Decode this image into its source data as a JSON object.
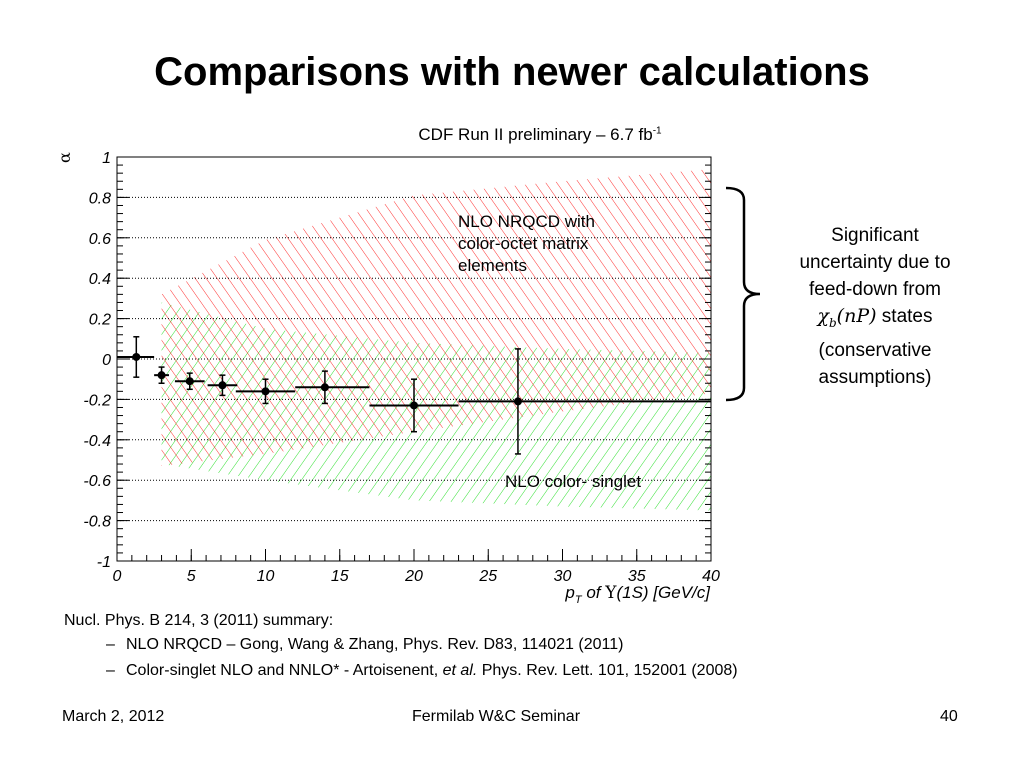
{
  "slide": {
    "title": "Comparisons with newer calculations",
    "chart_title": "CDF Run II preliminary – 6.7 fb",
    "chart_title_sup": "-1",
    "note": {
      "line1": "Significant",
      "line2": "uncertainty due to",
      "line3": "feed-down from",
      "chi": "χ",
      "chi_sub": "b",
      "np": "(nP)",
      "states": " states",
      "line5": "(conservative",
      "line6": "assumptions)"
    },
    "refs": {
      "heading": "Nucl. Phys. B 214, 3 (2011) summary:",
      "item1": "NLO NRQCD – Gong, Wang & Zhang, Phys. Rev. D83, 114021 (2011)",
      "item2_a": "Color-singlet NLO and NNLO* - Artoisenent, ",
      "item2_em": "et al.",
      "item2_b": " Phys. Rev. Lett. 101, 152001 (2008)"
    },
    "footer": {
      "date": "March 2, 2012",
      "event": "Fermilab W&C Seminar",
      "page": "40"
    }
  },
  "chart_data": {
    "type": "scatter",
    "xlabel": "p_T of Υ(1S) [GeV/c]",
    "ylabel": "α",
    "xlim": [
      0,
      40
    ],
    "ylim": [
      -1,
      1
    ],
    "x_ticks": [
      0,
      5,
      10,
      15,
      20,
      25,
      30,
      35,
      40
    ],
    "y_ticks": [
      1,
      0.8,
      0.6,
      0.4,
      0.2,
      0,
      -0.2,
      -0.4,
      -0.6,
      -0.8,
      -1
    ],
    "y_tick_labels": [
      "1",
      "0.8",
      "0.6",
      "0.4",
      "0.2",
      "0",
      "-0.2",
      "-0.4",
      "-0.6",
      "-0.8",
      "-1"
    ],
    "grid_y": true,
    "series": [
      {
        "type": "points",
        "points": [
          {
            "x": 1.3,
            "y": 0.01,
            "xerr": [
              1.3,
              1.2
            ],
            "yerr": [
              0.1,
              0.1
            ]
          },
          {
            "x": 3.0,
            "y": -0.08,
            "xerr": [
              0.5,
              0.5
            ],
            "yerr": [
              0.04,
              0.04
            ]
          },
          {
            "x": 4.9,
            "y": -0.11,
            "xerr": [
              1.0,
              1.0
            ],
            "yerr": [
              0.04,
              0.04
            ]
          },
          {
            "x": 7.1,
            "y": -0.13,
            "xerr": [
              1.0,
              1.0
            ],
            "yerr": [
              0.05,
              0.05
            ]
          },
          {
            "x": 10.0,
            "y": -0.16,
            "xerr": [
              2.0,
              2.0
            ],
            "yerr": [
              0.06,
              0.06
            ]
          },
          {
            "x": 14.0,
            "y": -0.14,
            "xerr": [
              2.0,
              3.0
            ],
            "yerr": [
              0.08,
              0.08
            ]
          },
          {
            "x": 20.0,
            "y": -0.23,
            "xerr": [
              3.0,
              3.0
            ],
            "yerr": [
              0.13,
              0.13
            ]
          },
          {
            "x": 27.0,
            "y": -0.21,
            "xerr": [
              4.0,
              13.0
            ],
            "yerr": [
              0.26,
              0.26
            ]
          }
        ],
        "color": "#000000"
      },
      {
        "name": "NLO NRQCD with color-octet matrix elements",
        "type": "band",
        "x": [
          3,
          10,
          20,
          30,
          40
        ],
        "upper": [
          0.32,
          0.59,
          0.81,
          0.88,
          0.94
        ],
        "lower": [
          -0.53,
          -0.47,
          -0.36,
          -0.26,
          -0.17
        ],
        "color": "#ff3030"
      },
      {
        "name": "NLO color- singlet",
        "type": "band",
        "x": [
          3,
          10,
          20,
          30,
          40
        ],
        "upper": [
          0.28,
          0.15,
          0.08,
          0.05,
          0.03
        ],
        "lower": [
          -0.52,
          -0.6,
          -0.7,
          -0.73,
          -0.75
        ],
        "color": "#30e030"
      }
    ],
    "colors": {
      "nrqcd": "#ff3030",
      "singlet": "#30e030",
      "points": "#000000"
    }
  }
}
